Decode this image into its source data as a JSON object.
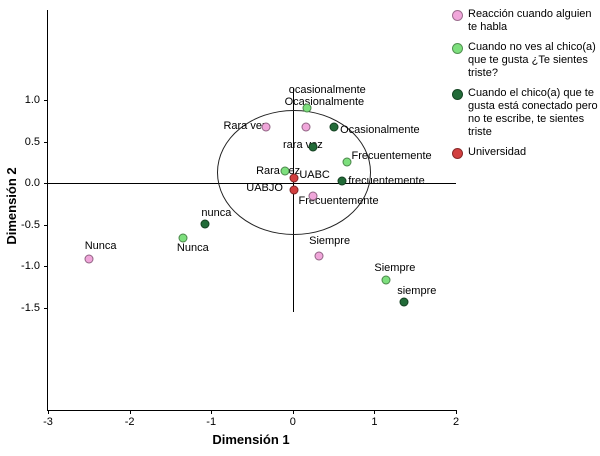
{
  "chart_data": {
    "type": "scatter",
    "title": "",
    "xlabel": "Dimensión 1",
    "ylabel": "Dimensión 2",
    "xlim": [
      -3,
      2
    ],
    "ylim": [
      -2.7,
      2.1
    ],
    "x_ticks": [
      -3,
      -2,
      -1,
      0,
      1,
      2
    ],
    "y_ticks": [
      1.0,
      0.5,
      0.0,
      -0.5,
      -1.0,
      -1.5
    ],
    "grid": false,
    "legend_position": "right",
    "reference_lines": {
      "horizontal_y": 0,
      "vertical_x": 0
    },
    "ellipse": {
      "cx": 0,
      "cy": 0.14,
      "rx": 0.93,
      "ry": 0.74
    },
    "series": [
      {
        "name": "Reacción cuando alguien te habla",
        "color": "#f0a6da",
        "points": [
          {
            "label": "Nunca",
            "x": -2.5,
            "y": -0.92,
            "lx": -2.55,
            "ly": -0.76
          },
          {
            "label": "Rara vez",
            "x": -0.33,
            "y": 0.68,
            "lx": -0.85,
            "ly": 0.69
          },
          {
            "label": "Ocasionalmente",
            "x": 0.16,
            "y": 0.68,
            "lx": 0.58,
            "ly": 0.64
          },
          {
            "label": "Frecuentemente",
            "x": 0.25,
            "y": -0.16,
            "lx": 0.07,
            "ly": -0.22
          },
          {
            "label": "Siempre",
            "x": 0.32,
            "y": -0.88,
            "lx": 0.2,
            "ly": -0.7
          }
        ]
      },
      {
        "name": "Cuando no ves al chico(a) que te gusta ¿Te sientes triste?",
        "color": "#7ddf7d",
        "points": [
          {
            "label": "Nunca",
            "x": -1.35,
            "y": -0.66,
            "lx": -1.42,
            "ly": -0.78
          },
          {
            "label": "Rara vez",
            "x": -0.1,
            "y": 0.15,
            "lx": -0.45,
            "ly": 0.14
          },
          {
            "label": "Ocasionalmente",
            "x": 0.18,
            "y": 0.9,
            "lx": -0.1,
            "ly": 0.98
          },
          {
            "label": "Frecuentemente",
            "x": 0.67,
            "y": 0.25,
            "lx": 0.72,
            "ly": 0.32
          },
          {
            "label": "Siempre",
            "x": 1.14,
            "y": -1.17,
            "lx": 1.0,
            "ly": -1.03
          }
        ]
      },
      {
        "name": "Cuando el chico(a) que te gusta está conectado pero no te escribe, te sientes triste",
        "color": "#226b38",
        "points": [
          {
            "label": "nunca",
            "x": -1.07,
            "y": -0.49,
            "lx": -1.12,
            "ly": -0.36
          },
          {
            "label": "rara vez",
            "x": 0.25,
            "y": 0.43,
            "lx": -0.12,
            "ly": 0.46
          },
          {
            "label": "ocasionalmente",
            "x": 0.5,
            "y": 0.67,
            "lx": -0.05,
            "ly": 1.12
          },
          {
            "label": "frecuentemente",
            "x": 0.6,
            "y": 0.02,
            "lx": 0.68,
            "ly": 0.02
          },
          {
            "label": "siempre",
            "x": 1.36,
            "y": -1.43,
            "lx": 1.28,
            "ly": -1.3
          }
        ]
      },
      {
        "name": "Universidad",
        "color": "#d23f3f",
        "points": [
          {
            "label": "UABC",
            "x": 0.02,
            "y": 0.06,
            "lx": 0.08,
            "ly": 0.1
          },
          {
            "label": "UABJO",
            "x": 0.02,
            "y": -0.09,
            "lx": -0.57,
            "ly": -0.06
          }
        ]
      }
    ]
  },
  "legend": {
    "items": [
      {
        "label": "Reacción cuando alguien te habla",
        "color": "#f0a6da"
      },
      {
        "label": "Cuando no ves al chico(a) que te gusta ¿Te sientes triste?",
        "color": "#7ddf7d"
      },
      {
        "label": "Cuando el chico(a) que te gusta está conectado pero no te escribe, te sientes triste",
        "color": "#226b38"
      },
      {
        "label": "Universidad",
        "color": "#d23f3f"
      }
    ]
  }
}
